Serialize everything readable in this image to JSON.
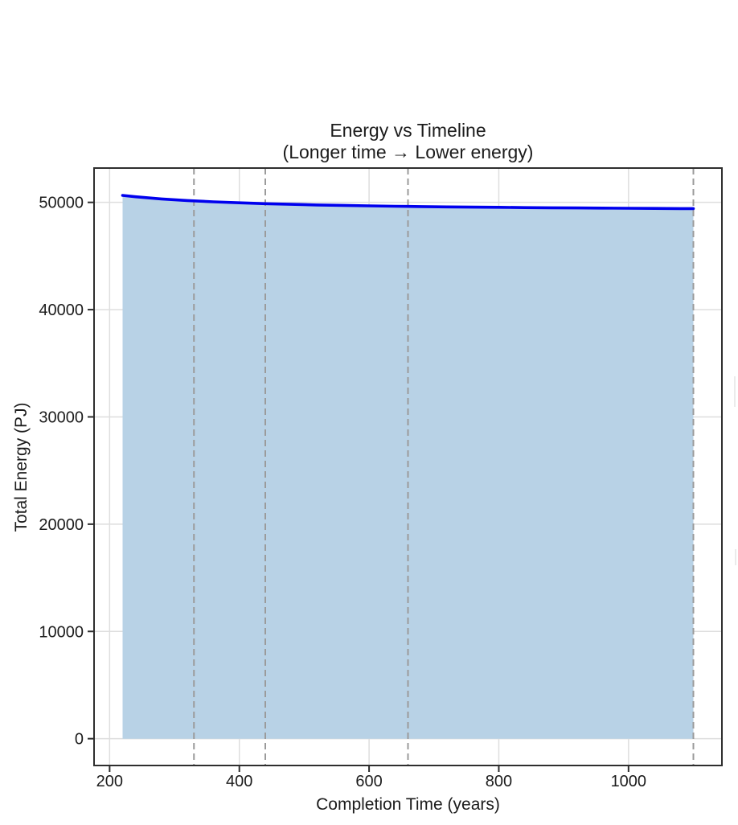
{
  "chart_data": {
    "type": "area",
    "title": "Energy vs Timeline",
    "subtitle": "(Longer time → Lower energy)",
    "xlabel": "Completion Time (years)",
    "ylabel": "Total Energy (PJ)",
    "xlim": [
      176,
      1144
    ],
    "ylim": [
      -2500,
      53200
    ],
    "xticks": [
      200,
      400,
      600,
      800,
      1000
    ],
    "yticks": [
      0,
      10000,
      20000,
      30000,
      40000,
      50000
    ],
    "grid": true,
    "legend": "none",
    "series": [
      {
        "name": "Total Energy (PJ)",
        "x": [
          220,
          240,
          280,
          320,
          360,
          400,
          440,
          480,
          520,
          560,
          600,
          640,
          680,
          720,
          760,
          800,
          840,
          880,
          920,
          960,
          1000,
          1040,
          1080,
          1100
        ],
        "y": [
          50650,
          50520,
          50320,
          50170,
          50050,
          49960,
          49880,
          49820,
          49760,
          49720,
          49680,
          49640,
          49610,
          49580,
          49560,
          49540,
          49515,
          49495,
          49480,
          49465,
          49450,
          49440,
          49425,
          49420
        ],
        "fill_to": 0
      }
    ],
    "vlines": [
      330,
      440,
      660,
      1100
    ],
    "colors": {
      "line": "#0000ee",
      "fill": "#b8d2e6",
      "vline": "#9b9b9b",
      "grid": "#dedede",
      "spine": "#2e2e2e",
      "text": "#1c1c1c",
      "background": "#ffffff"
    }
  }
}
